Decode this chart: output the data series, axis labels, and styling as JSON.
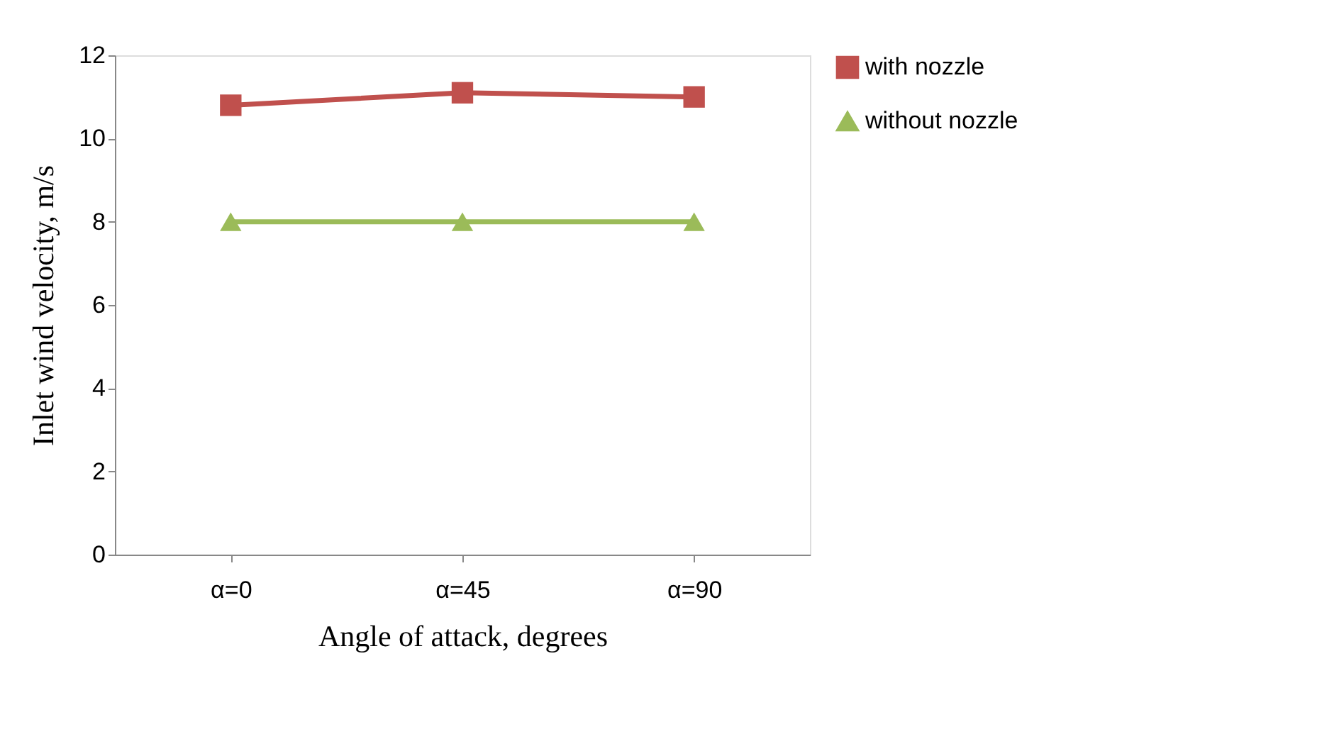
{
  "chart_data": {
    "type": "line",
    "xlabel": "Angle of attack, degrees",
    "ylabel": "Inlet wind velocity, m/s",
    "categories": [
      "α=0",
      "α=45",
      "α=90"
    ],
    "series": [
      {
        "name": "with nozzle",
        "color": "#c0504d",
        "values": [
          10.8,
          11.1,
          11.0
        ],
        "marker": "square"
      },
      {
        "name": "without nozzle",
        "color": "#9bbb59",
        "values": [
          8,
          8,
          8
        ],
        "marker": "triangle"
      }
    ],
    "ylim": [
      0,
      12
    ],
    "yticks": [
      0,
      2,
      4,
      6,
      8,
      10,
      12
    ],
    "grid": false,
    "legend": "right"
  }
}
